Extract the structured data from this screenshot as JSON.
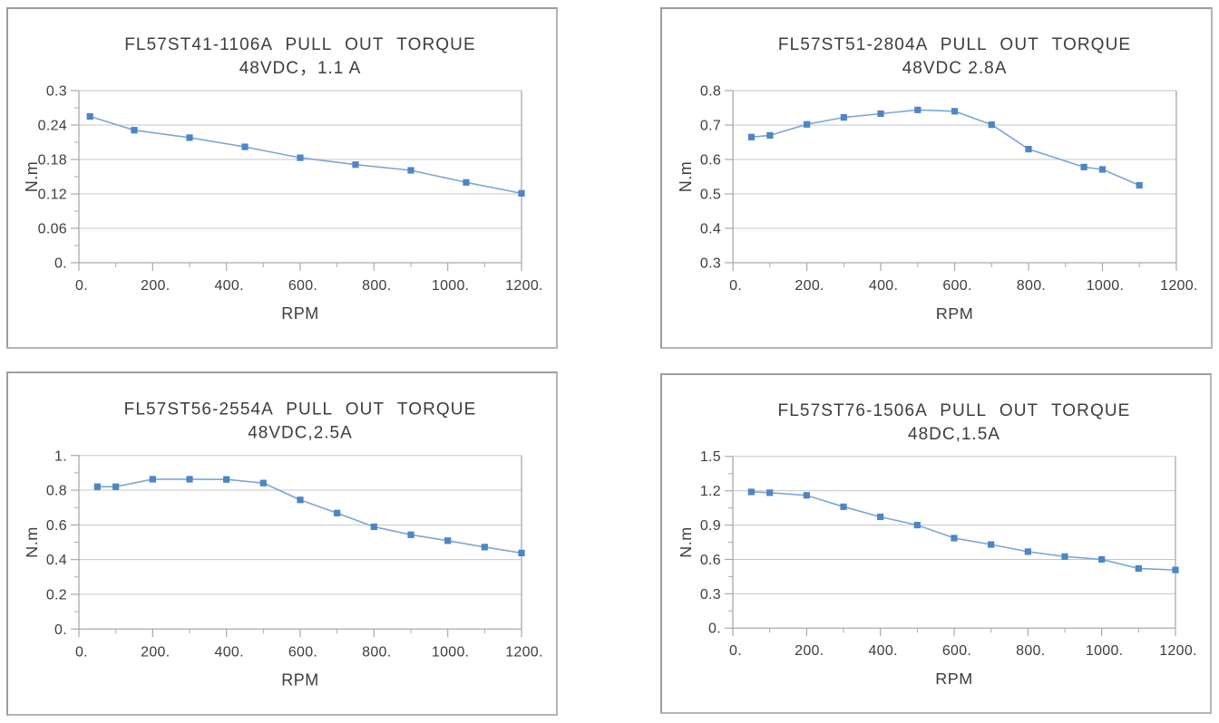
{
  "colors": {
    "line": "#7ba7d4",
    "marker": "#4d86c3",
    "grid": "#c4c7c9",
    "axis": "#a7aaac",
    "plot_right_border": "#a7aaac",
    "text": "#3d3d3d",
    "panel_border": "#a6a9ac",
    "background": "#ffffff"
  },
  "chart_data": [
    {
      "type": "line",
      "position": "top-left",
      "title": "FL57ST41-1106A PULL OUT TORQUE",
      "subtitle": "48VDC，1.1 A",
      "xlabel": "RPM",
      "ylabel": "N.m",
      "marker": "square",
      "grid": "horizontal-major",
      "legend": "none",
      "xlim": [
        0,
        1200
      ],
      "ylim": [
        0,
        0.3
      ],
      "x_ticks": [
        0,
        200,
        400,
        600,
        800,
        1000,
        1200
      ],
      "x_tick_labels": [
        "0.",
        "200.",
        "400.",
        "600.",
        "800.",
        "1000.",
        "1200."
      ],
      "y_ticks": [
        0,
        0.06,
        0.12,
        0.18,
        0.24,
        0.3
      ],
      "y_tick_labels": [
        "0.",
        "0.06",
        "0.12",
        "0.18",
        "0.24",
        "0.3"
      ],
      "x_minor_step": 100,
      "y_minor_step": 0.03,
      "x": [
        30,
        150,
        300,
        450,
        600,
        750,
        900,
        1050,
        1200
      ],
      "y": [
        0.255,
        0.231,
        0.218,
        0.202,
        0.183,
        0.171,
        0.161,
        0.14,
        0.121
      ]
    },
    {
      "type": "line",
      "position": "top-right",
      "title": "FL57ST51-2804A PULL OUT TORQUE",
      "subtitle": "48VDC 2.8A",
      "xlabel": "RPM",
      "ylabel": "N.m",
      "marker": "square",
      "grid": "horizontal-major",
      "legend": "none",
      "xlim": [
        0,
        1200
      ],
      "ylim": [
        0.3,
        0.8
      ],
      "x_ticks": [
        0,
        200,
        400,
        600,
        800,
        1000,
        1200
      ],
      "x_tick_labels": [
        "0.",
        "200.",
        "400.",
        "600.",
        "800.",
        "1000.",
        "1200."
      ],
      "y_ticks": [
        0.3,
        0.4,
        0.5,
        0.6,
        0.7,
        0.8
      ],
      "y_tick_labels": [
        "0.3",
        "0.4",
        "0.5",
        "0.6",
        "0.7",
        "0.8"
      ],
      "x_minor_step": 100,
      "y_minor_step": null,
      "x": [
        50,
        100,
        200,
        300,
        400,
        500,
        600,
        700,
        800,
        950,
        1000,
        1100
      ],
      "y": [
        0.665,
        0.67,
        0.702,
        0.722,
        0.733,
        0.744,
        0.74,
        0.701,
        0.63,
        0.578,
        0.571,
        0.525
      ]
    },
    {
      "type": "line",
      "position": "bottom-left",
      "title": "FL57ST56-2554A PULL OUT TORQUE",
      "subtitle": "48VDC,2.5A",
      "xlabel": "RPM",
      "ylabel": "N.m",
      "marker": "square",
      "grid": "horizontal-major",
      "legend": "none",
      "xlim": [
        0,
        1200
      ],
      "ylim": [
        0,
        1
      ],
      "x_ticks": [
        0,
        200,
        400,
        600,
        800,
        1000,
        1200
      ],
      "x_tick_labels": [
        "0.",
        "200.",
        "400.",
        "600.",
        "800.",
        "1000.",
        "1200."
      ],
      "y_ticks": [
        0,
        0.2,
        0.4,
        0.6,
        0.8,
        1
      ],
      "y_tick_labels": [
        "0.",
        "0.2",
        "0.4",
        "0.6",
        "0.8",
        "1."
      ],
      "x_minor_step": 100,
      "y_minor_step": 0.1,
      "x": [
        50,
        100,
        200,
        300,
        400,
        500,
        600,
        700,
        800,
        900,
        1000,
        1100,
        1200
      ],
      "y": [
        0.82,
        0.82,
        0.863,
        0.863,
        0.862,
        0.841,
        0.744,
        0.668,
        0.589,
        0.543,
        0.509,
        0.472,
        0.438
      ]
    },
    {
      "type": "line",
      "position": "bottom-right",
      "title": "FL57ST76-1506A PULL OUT TORQUE",
      "subtitle": "48DC,1.5A",
      "xlabel": "RPM",
      "ylabel": "N.m",
      "marker": "square",
      "grid": "horizontal-major",
      "legend": "none",
      "xlim": [
        0,
        1200
      ],
      "ylim": [
        0,
        1.5
      ],
      "x_ticks": [
        0,
        200,
        400,
        600,
        800,
        1000,
        1200
      ],
      "x_tick_labels": [
        "0.",
        "200.",
        "400.",
        "600.",
        "800.",
        "1000.",
        "1200."
      ],
      "y_ticks": [
        0,
        0.3,
        0.6,
        0.9,
        1.2,
        1.5
      ],
      "y_tick_labels": [
        "0.",
        "0.3",
        "0.6",
        "0.9",
        "1.2",
        "1.5"
      ],
      "x_minor_step": 100,
      "y_minor_step": 0.15,
      "x": [
        50,
        100,
        200,
        300,
        400,
        500,
        600,
        700,
        800,
        900,
        1000,
        1100,
        1200
      ],
      "y": [
        1.19,
        1.183,
        1.16,
        1.06,
        0.972,
        0.9,
        0.786,
        0.73,
        0.668,
        0.625,
        0.6,
        0.521,
        0.508
      ]
    }
  ]
}
